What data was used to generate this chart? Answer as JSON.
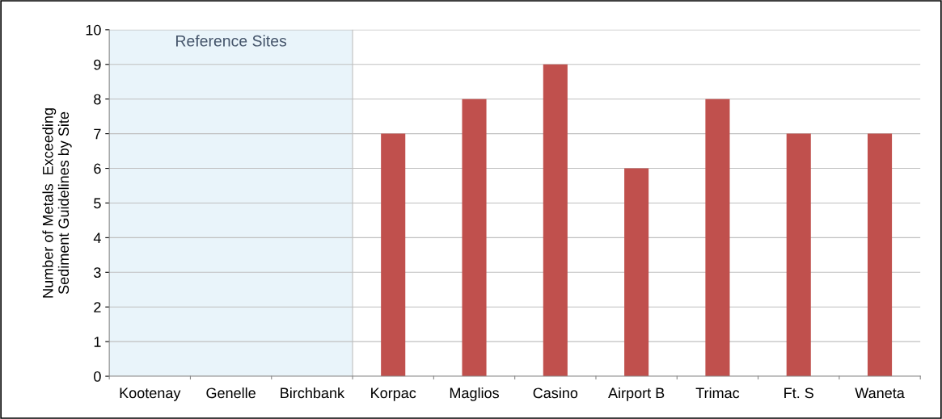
{
  "chart_data": {
    "type": "bar",
    "ylabel": "Number of Metals  Exceeding\nSediment Guidelines by Site",
    "categories": [
      "Kootenay",
      "Genelle",
      "Birchbank",
      "Korpac",
      "Maglios",
      "Casino",
      "Airport B",
      "Trimac",
      "Ft. S",
      "Waneta"
    ],
    "values": [
      0,
      0,
      0,
      7,
      8,
      9,
      6,
      8,
      7,
      7
    ],
    "color": "#c0504d",
    "ylim": [
      0,
      10
    ],
    "yticks": [
      0,
      1,
      2,
      3,
      4,
      5,
      6,
      7,
      8,
      9,
      10
    ],
    "grid": "y",
    "legend": false,
    "bands": [
      {
        "axis": "x",
        "from": "Kootenay",
        "to": "Birchbank",
        "label": "Reference Sites",
        "color": "#e9f4fa"
      }
    ]
  }
}
